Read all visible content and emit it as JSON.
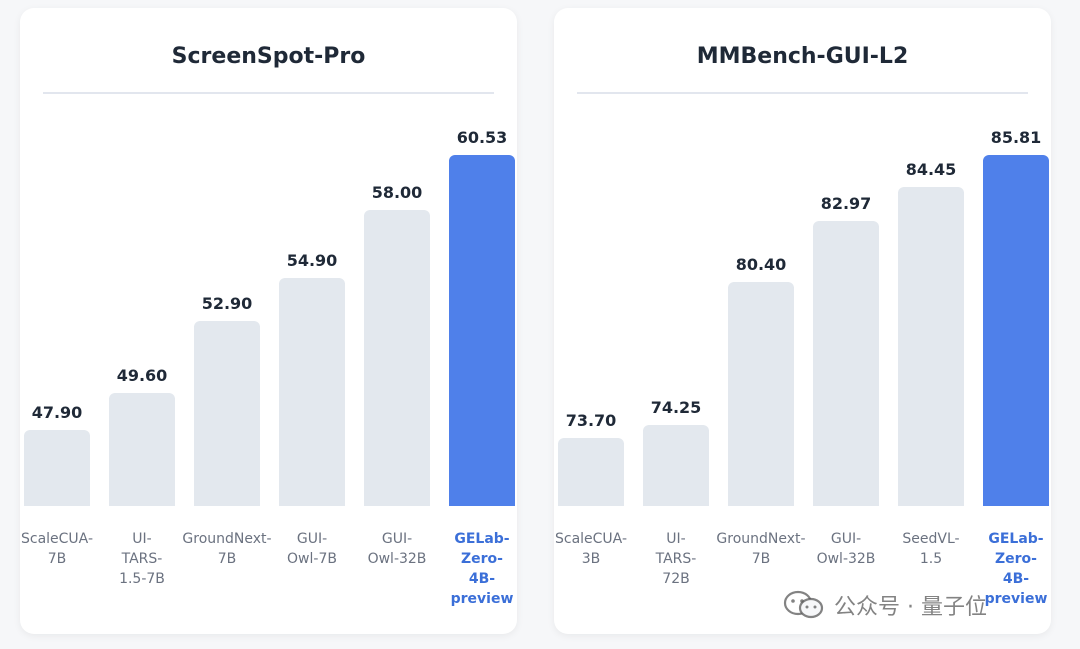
{
  "chart_data": [
    {
      "type": "bar",
      "title": "ScreenSpot-Pro",
      "categories": [
        "ScaleCUA-\n7B",
        "UI-\nTARS-\n1.5-7B",
        "GroundNext-\n7B",
        "GUI-\nOwl-7B",
        "GUI-\nOwl-32B",
        "GELab-\nZero-\n4B-\npreview"
      ],
      "values": [
        47.9,
        49.6,
        52.9,
        54.9,
        58.0,
        60.53
      ],
      "value_labels": [
        "47.90",
        "49.60",
        "52.90",
        "54.90",
        "58.00",
        "60.53"
      ],
      "ylim": [
        44.4,
        60.53
      ],
      "highlight_index": 5,
      "grid": false
    },
    {
      "type": "bar",
      "title": "MMBench-GUI-L2",
      "categories": [
        "ScaleCUA-\n3B",
        "UI-\nTARS-\n72B",
        "GroundNext-\n7B",
        "GUI-\nOwl-32B",
        "SeedVL-\n1.5",
        "GELab-\nZero-\n4B-\npreview"
      ],
      "values": [
        73.7,
        74.25,
        80.4,
        82.97,
        84.45,
        85.81
      ],
      "value_labels": [
        "73.70",
        "74.25",
        "80.40",
        "82.97",
        "84.45",
        "85.81"
      ],
      "ylim": [
        70.8,
        85.81
      ],
      "highlight_index": 5,
      "grid": false
    }
  ],
  "colors": {
    "bar": "#e3e8ee",
    "highlight": "#4f80ea",
    "highlight_text": "#3b6fd8"
  },
  "watermark": {
    "text": "公众号 · 量子位",
    "icon": "wechat-icon"
  }
}
